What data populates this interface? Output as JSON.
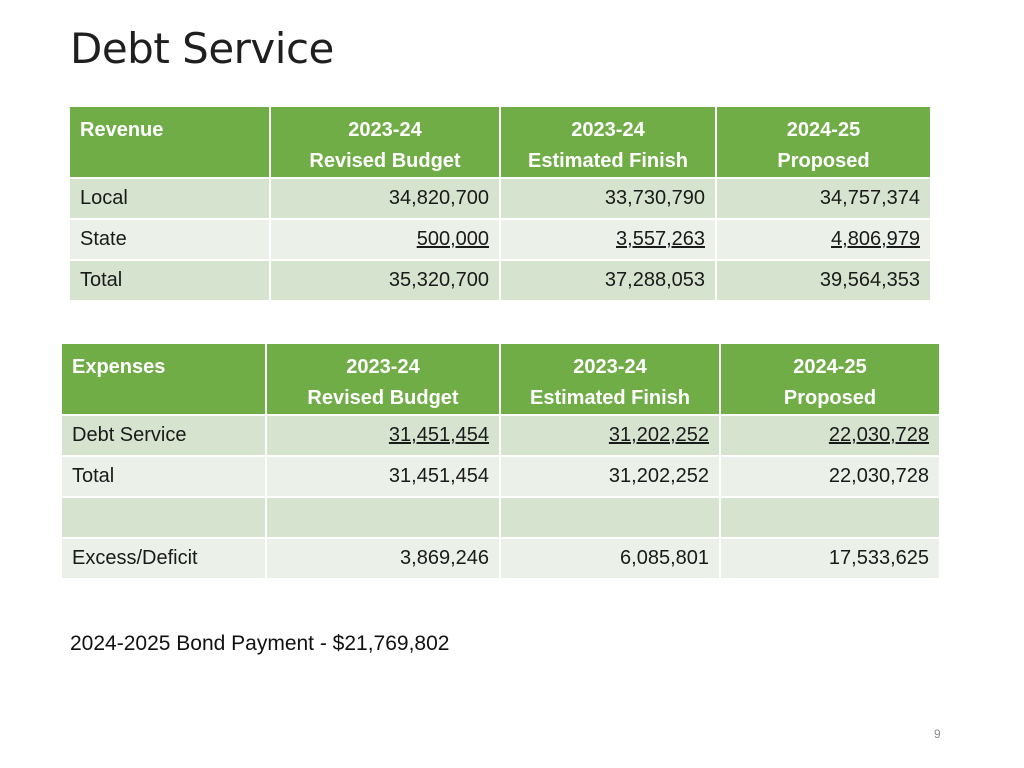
{
  "title": "Debt Service",
  "revenue_table": {
    "headers": {
      "label": "Revenue",
      "col1": [
        "2023-24",
        "Revised Budget"
      ],
      "col2": [
        "2023-24",
        "Estimated Finish"
      ],
      "col3": [
        "2024-25",
        "Proposed"
      ]
    },
    "rows": [
      {
        "label": "Local",
        "values": [
          "34,820,700",
          "33,730,790",
          "34,757,374"
        ]
      },
      {
        "label": "State",
        "values": [
          "500,000",
          "3,557,263",
          "4,806,979"
        ]
      },
      {
        "label": "Total",
        "values": [
          "35,320,700",
          "37,288,053",
          "39,564,353"
        ]
      }
    ]
  },
  "expenses_table": {
    "headers": {
      "label": "Expenses",
      "col1": [
        "2023-24",
        "Revised Budget"
      ],
      "col2": [
        "2023-24",
        "Estimated Finish"
      ],
      "col3": [
        "2024-25",
        "Proposed"
      ]
    },
    "rows": [
      {
        "label": "Debt Service",
        "values": [
          "31,451,454",
          "31,202,252",
          "22,030,728"
        ]
      },
      {
        "label": "Total",
        "values": [
          "31,451,454",
          "31,202,252",
          "22,030,728"
        ]
      },
      {
        "label": "",
        "values": [
          "",
          "",
          ""
        ]
      },
      {
        "label": "Excess/Deficit",
        "values": [
          "3,869,246",
          "6,085,801",
          "17,533,625"
        ]
      }
    ]
  },
  "note": "2024-2025 Bond Payment - $21,769,802",
  "page_number": "9",
  "colors": {
    "header_green": "#70ad47",
    "band_dark": "#d5e3cf",
    "band_light": "#ebf1e9"
  }
}
